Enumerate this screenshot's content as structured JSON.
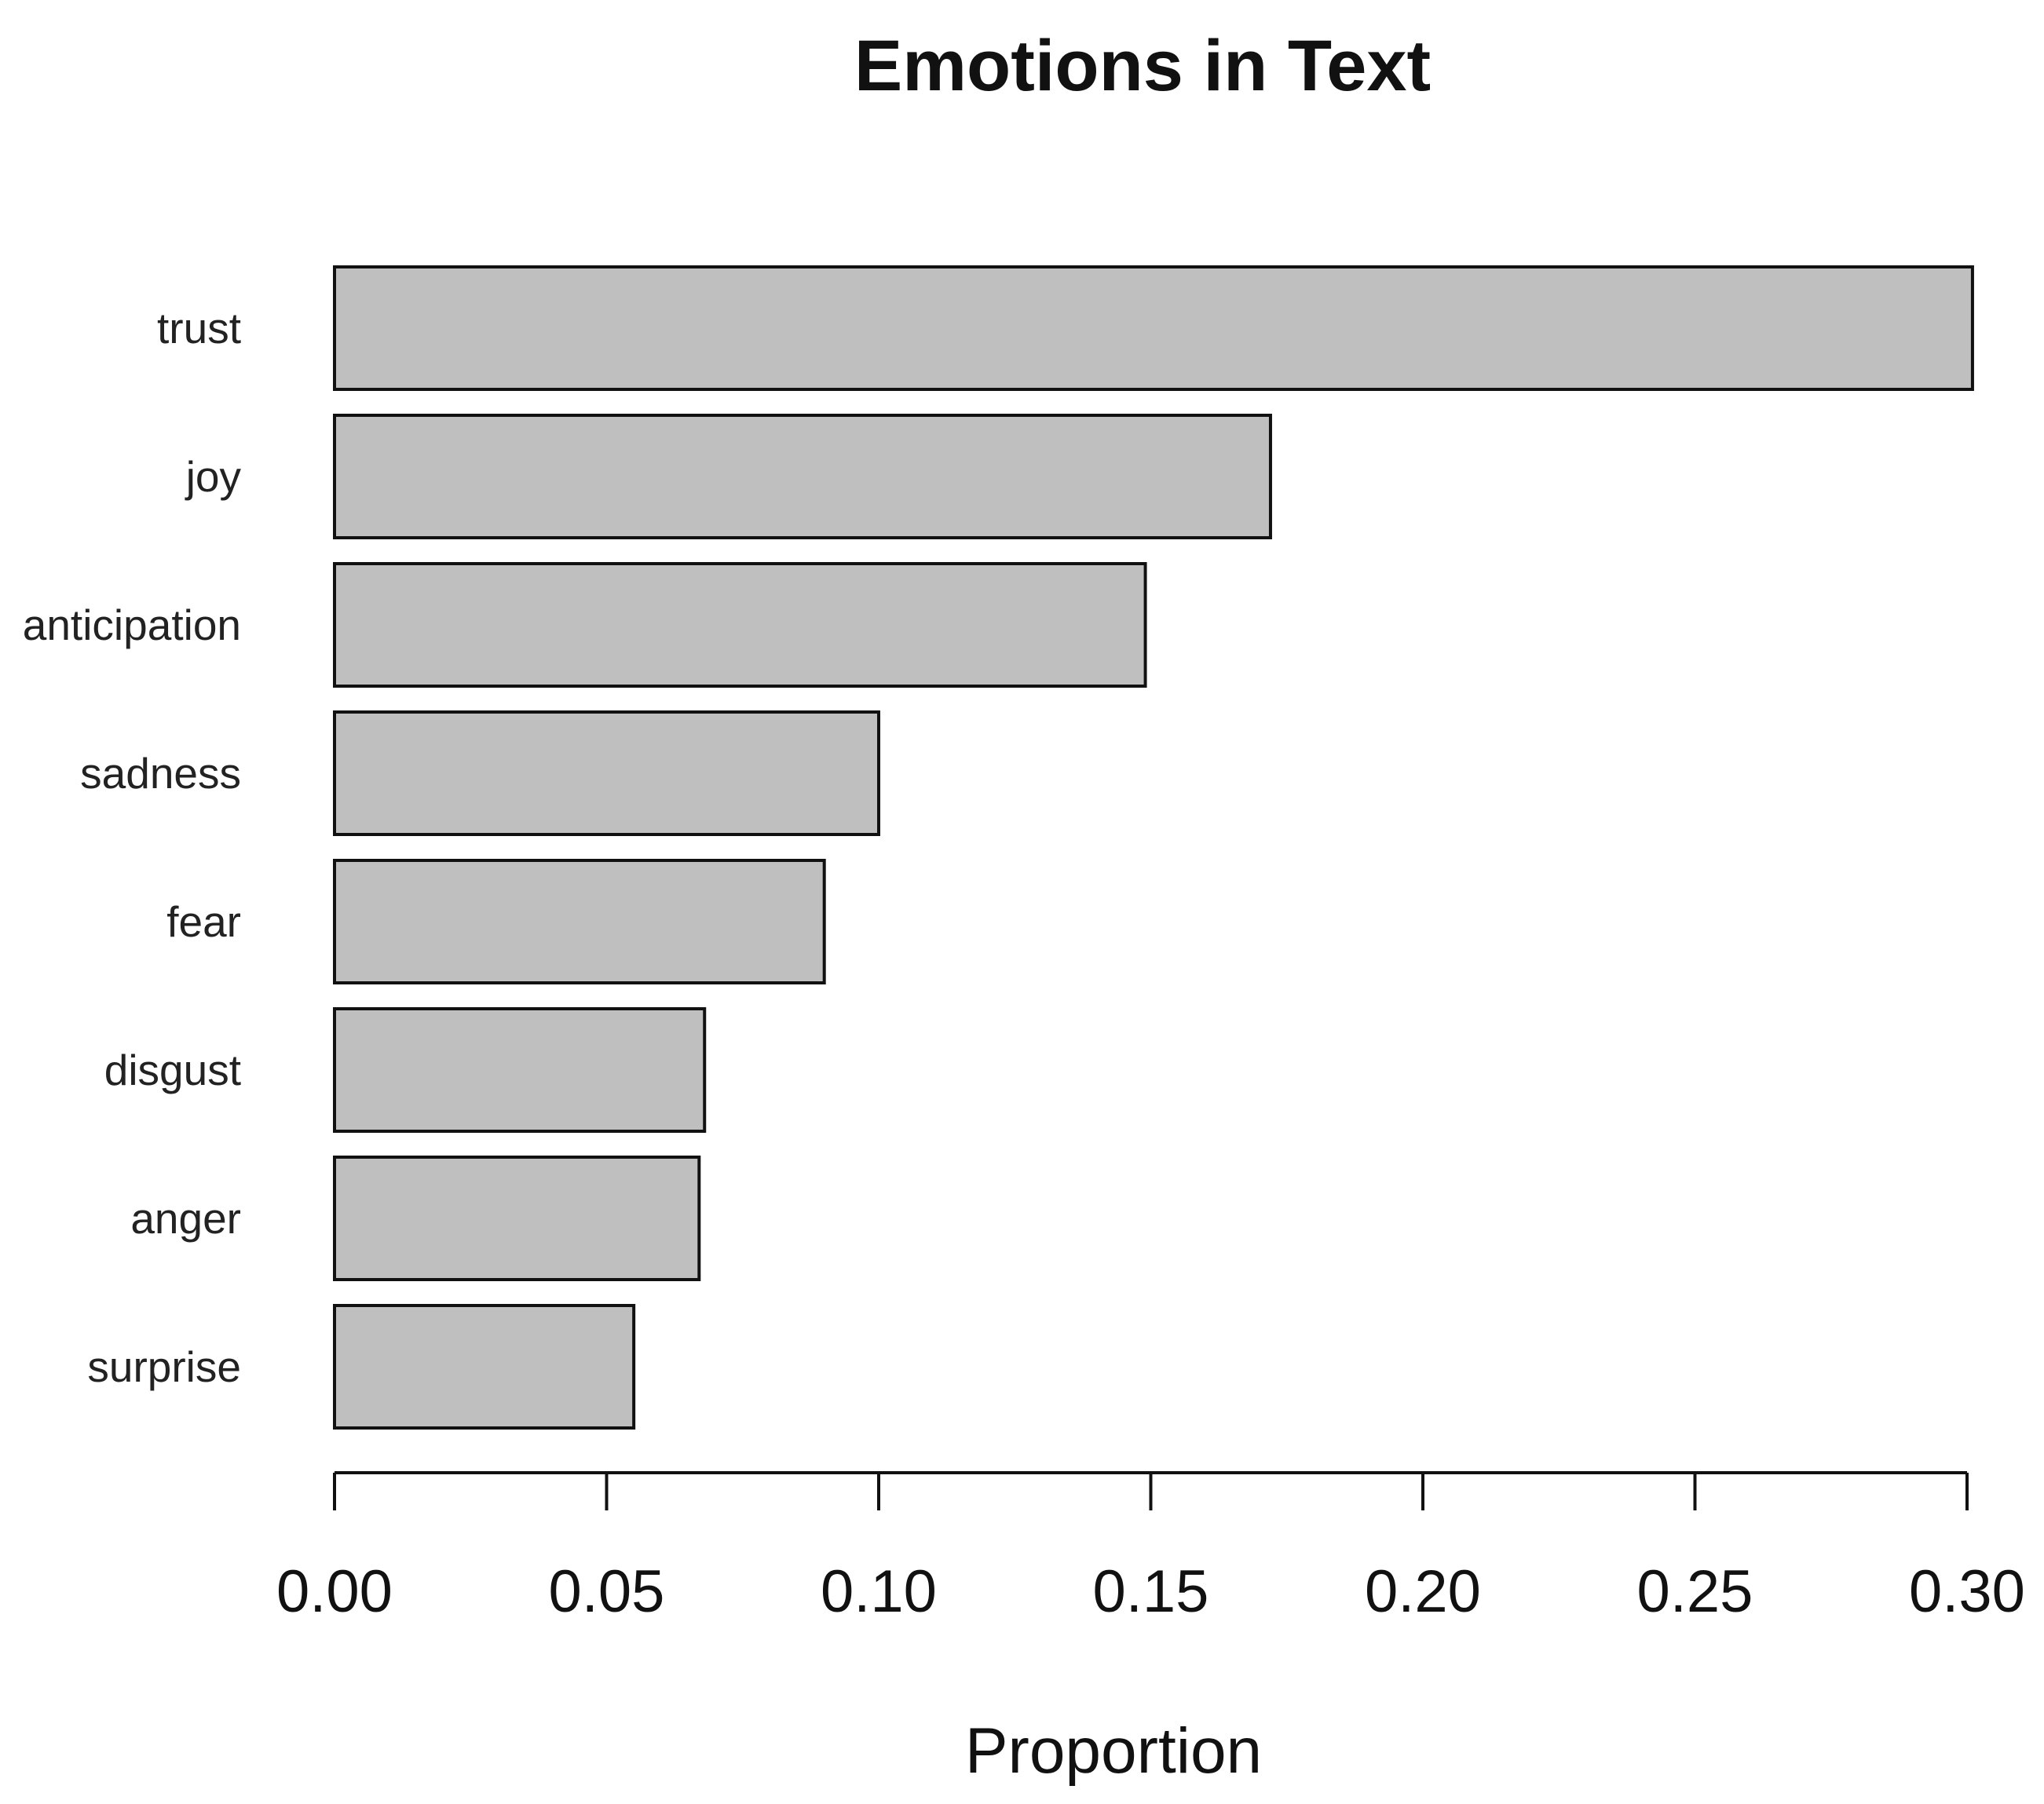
{
  "chart_data": {
    "type": "bar",
    "orientation": "horizontal",
    "title": "Emotions in Text",
    "xlabel": "Proportion",
    "ylabel": "",
    "categories": [
      "trust",
      "joy",
      "anticipation",
      "sadness",
      "fear",
      "disgust",
      "anger",
      "surprise"
    ],
    "values": [
      0.301,
      0.172,
      0.149,
      0.1,
      0.09,
      0.068,
      0.067,
      0.055
    ],
    "xlim": [
      0,
      0.3
    ],
    "ticks": [
      0.0,
      0.05,
      0.1,
      0.15,
      0.2,
      0.25,
      0.3
    ],
    "tick_labels": [
      "0.00",
      "0.05",
      "0.10",
      "0.15",
      "0.20",
      "0.25",
      "0.30"
    ],
    "bar_color": "#bfbfbf",
    "bar_edge_color": "#111111",
    "grid": false,
    "legend": "none"
  }
}
